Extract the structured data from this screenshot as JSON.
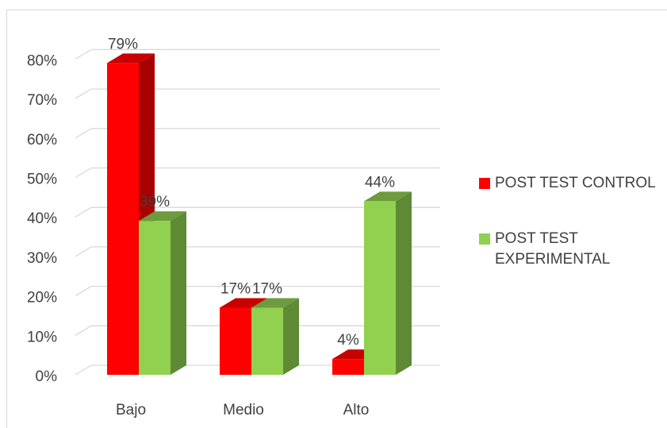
{
  "chart_data": {
    "type": "bar",
    "categories": [
      "Bajo",
      "Medio",
      "Alto"
    ],
    "series": [
      {
        "name": "POST TEST CONTROL",
        "values": [
          79,
          17,
          4
        ],
        "labels": [
          "79%",
          "17%",
          "4%"
        ],
        "color": "#ff0000",
        "side_color": "#a80000",
        "top_color": "#c80000"
      },
      {
        "name": "POST TEST EXPERIMENTAL",
        "values": [
          39,
          17,
          44
        ],
        "labels": [
          "39%",
          "17%",
          "44%"
        ],
        "color": "#92d050",
        "side_color": "#5f8a35",
        "top_color": "#6d9b3d"
      }
    ],
    "ylim": [
      0,
      80
    ],
    "yticks": [
      0,
      10,
      20,
      30,
      40,
      50,
      60,
      70,
      80
    ],
    "ytick_labels": [
      "0%",
      "10%",
      "20%",
      "30%",
      "40%",
      "50%",
      "60%",
      "70%",
      "80%"
    ],
    "grid": true,
    "legend": "right",
    "gridline_color": "#d9d9d9"
  }
}
